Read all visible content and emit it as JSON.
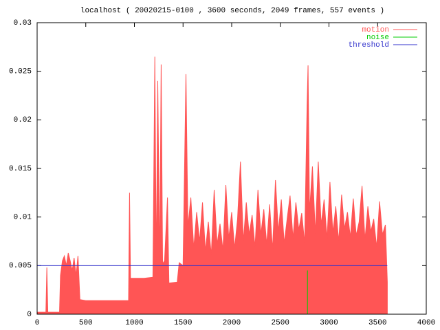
{
  "chart_data": {
    "type": "area",
    "title": "localhost ( 20020215-0100 , 3600 seconds, 2049 frames, 557 events )",
    "xlim": [
      0,
      4000
    ],
    "xticks": [
      0,
      500,
      1000,
      1500,
      2000,
      2500,
      3000,
      3500,
      4000
    ],
    "ylim": [
      0,
      0.03
    ],
    "yticks": [
      0,
      0.005,
      0.01,
      0.015,
      0.02,
      0.025,
      0.03
    ],
    "legend": "top-right",
    "series": [
      {
        "name": "motion",
        "color": "#ff5555",
        "x": [
          0,
          90,
          100,
          110,
          230,
          240,
          260,
          280,
          300,
          320,
          340,
          360,
          380,
          400,
          420,
          440,
          500,
          600,
          700,
          800,
          940,
          950,
          960,
          1000,
          1100,
          1190,
          1210,
          1225,
          1240,
          1260,
          1275,
          1290,
          1310,
          1340,
          1355,
          1440,
          1460,
          1500,
          1530,
          1550,
          1580,
          1610,
          1640,
          1670,
          1700,
          1730,
          1760,
          1790,
          1820,
          1850,
          1880,
          1910,
          1940,
          1970,
          2000,
          2030,
          2060,
          2090,
          2120,
          2150,
          2180,
          2210,
          2240,
          2270,
          2300,
          2330,
          2360,
          2390,
          2420,
          2450,
          2480,
          2510,
          2540,
          2570,
          2600,
          2630,
          2660,
          2690,
          2720,
          2750,
          2775,
          2785,
          2800,
          2830,
          2860,
          2890,
          2920,
          2950,
          2980,
          3010,
          3040,
          3070,
          3100,
          3130,
          3160,
          3190,
          3220,
          3250,
          3280,
          3310,
          3340,
          3370,
          3400,
          3430,
          3460,
          3490,
          3520,
          3550,
          3580,
          3600
        ],
        "values": [
          0.0002,
          0.0002,
          0.0048,
          0.0002,
          0.0002,
          0.004,
          0.0055,
          0.006,
          0.005,
          0.0063,
          0.0055,
          0.0045,
          0.0058,
          0.004,
          0.006,
          0.0015,
          0.0014,
          0.0014,
          0.0014,
          0.0014,
          0.0014,
          0.0125,
          0.0037,
          0.0037,
          0.0037,
          0.0038,
          0.0265,
          0.0045,
          0.024,
          0.005,
          0.0257,
          0.0052,
          0.0055,
          0.012,
          0.0032,
          0.0033,
          0.0053,
          0.005,
          0.0247,
          0.009,
          0.012,
          0.0068,
          0.0105,
          0.0075,
          0.0115,
          0.0065,
          0.0095,
          0.0061,
          0.0128,
          0.0072,
          0.0093,
          0.0066,
          0.0133,
          0.0078,
          0.0105,
          0.0068,
          0.0098,
          0.0157,
          0.0075,
          0.0115,
          0.0082,
          0.0102,
          0.0069,
          0.0128,
          0.0082,
          0.0108,
          0.0072,
          0.0113,
          0.0066,
          0.0138,
          0.0085,
          0.0118,
          0.0073,
          0.0098,
          0.0122,
          0.0078,
          0.0115,
          0.0087,
          0.0104,
          0.0073,
          0.0215,
          0.0256,
          0.0105,
          0.0152,
          0.0083,
          0.0157,
          0.0092,
          0.0118,
          0.0078,
          0.0136,
          0.0084,
          0.0111,
          0.0075,
          0.0123,
          0.0088,
          0.0105,
          0.0079,
          0.0119,
          0.0081,
          0.0095,
          0.0132,
          0.0077,
          0.0111,
          0.0085,
          0.0098,
          0.0069,
          0.0116,
          0.0082,
          0.0092,
          0.0033
        ]
      },
      {
        "name": "noise",
        "color": "#00cc00",
        "x": [
          2779,
          2779
        ],
        "values": [
          0,
          0.0045
        ]
      },
      {
        "name": "threshold",
        "color": "#3333cc",
        "x": [
          0,
          3600
        ],
        "values": [
          0.005,
          0.005
        ]
      }
    ]
  }
}
